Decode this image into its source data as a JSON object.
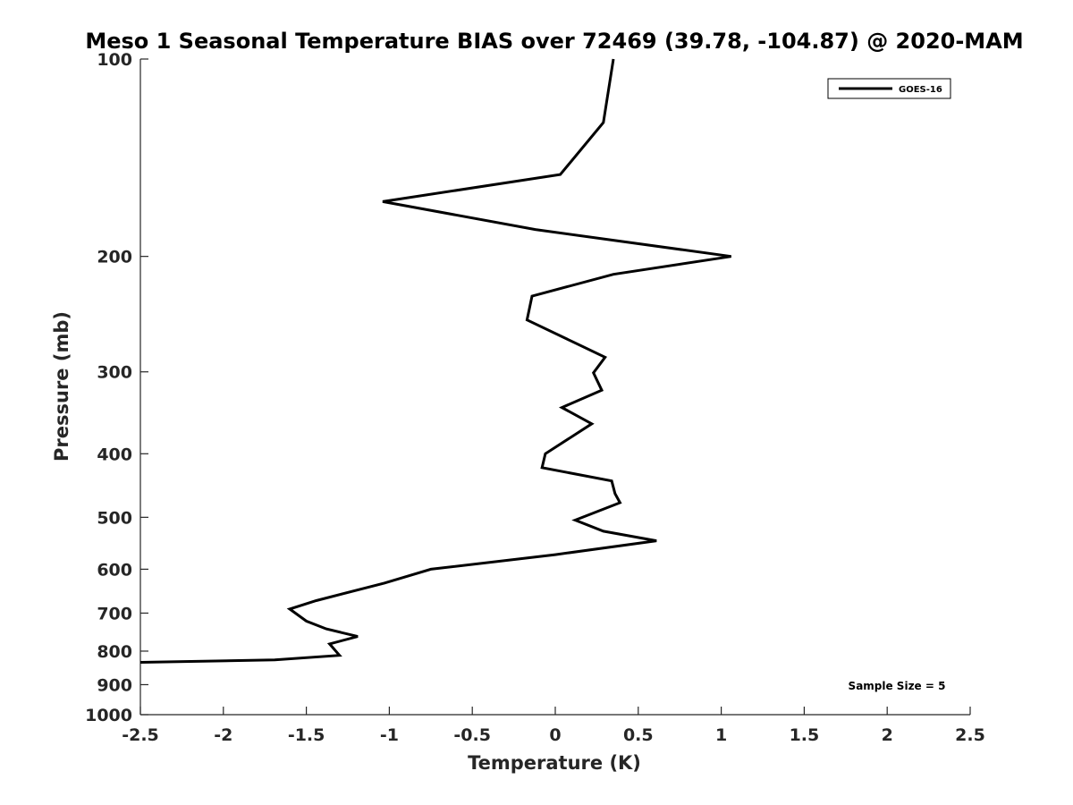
{
  "chart_data": {
    "type": "line",
    "title": "Meso 1 Seasonal Temperature BIAS over 72469 (39.78, -104.87) @ 2020-MAM",
    "xlabel": "Temperature (K)",
    "ylabel": "Pressure (mb)",
    "xlim": [
      -2.5,
      2.5
    ],
    "ylim": [
      100,
      1000
    ],
    "y_scale": "log",
    "y_reversed": true,
    "x_ticks": [
      "-2.5",
      "-2",
      "-1.5",
      "-1",
      "-0.5",
      "0",
      "0.5",
      "1",
      "1.5",
      "2",
      "2.5"
    ],
    "y_ticks": [
      "100",
      "200",
      "300",
      "400",
      "500",
      "600",
      "700",
      "800",
      "900",
      "1000"
    ],
    "legend_placement": "top-right",
    "grid": false,
    "annotation": "Sample Size = 5",
    "series": [
      {
        "name": "GOES-16",
        "color": "#000000",
        "points": [
          [
            0.35,
            100
          ],
          [
            0.29,
            125
          ],
          [
            0.03,
            150
          ],
          [
            -1.04,
            165
          ],
          [
            -0.12,
            182
          ],
          [
            1.06,
            200
          ],
          [
            0.35,
            213
          ],
          [
            -0.14,
            230
          ],
          [
            -0.17,
            250
          ],
          [
            0.3,
            285
          ],
          [
            0.23,
            301
          ],
          [
            0.28,
            320
          ],
          [
            0.04,
            340
          ],
          [
            0.22,
            360
          ],
          [
            -0.06,
            400
          ],
          [
            -0.08,
            420
          ],
          [
            0.34,
            440
          ],
          [
            0.36,
            460
          ],
          [
            0.39,
            475
          ],
          [
            0.12,
            505
          ],
          [
            0.29,
            525
          ],
          [
            0.61,
            543
          ],
          [
            0.0,
            570
          ],
          [
            -0.75,
            600
          ],
          [
            -1.03,
            630
          ],
          [
            -1.44,
            670
          ],
          [
            -1.6,
            690
          ],
          [
            -1.5,
            720
          ],
          [
            -1.38,
            740
          ],
          [
            -1.19,
            760
          ],
          [
            -1.36,
            780
          ],
          [
            -1.3,
            812
          ],
          [
            -1.69,
            825
          ],
          [
            -2.5,
            832
          ]
        ]
      }
    ]
  }
}
